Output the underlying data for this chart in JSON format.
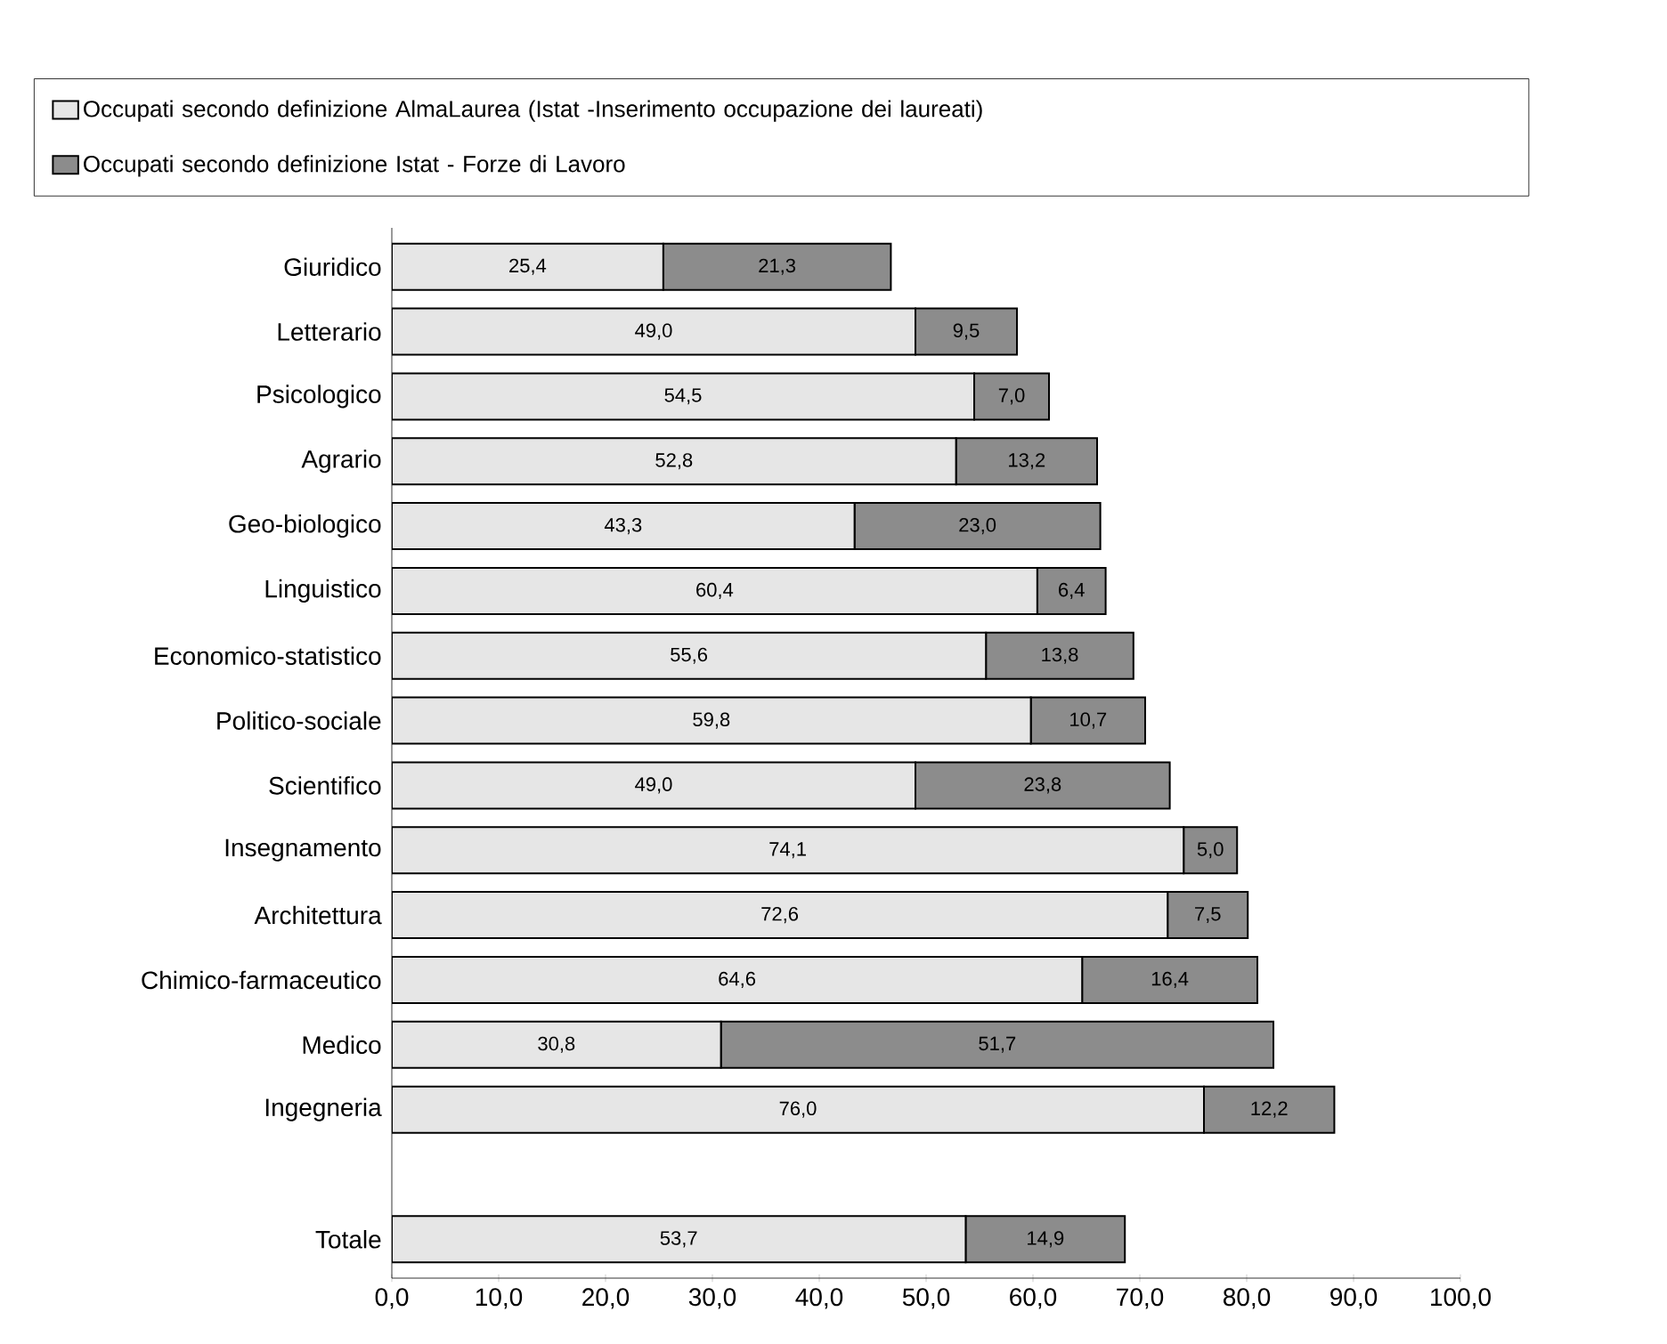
{
  "chart_data": {
    "type": "bar",
    "orientation": "horizontal",
    "stacked": true,
    "legend": "top",
    "grid": false,
    "categories": [
      "Giuridico",
      "Letterario",
      "Psicologico",
      "Agrario",
      "Geo-biologico",
      "Linguistico",
      "Economico-statistico",
      "Politico-sociale",
      "Scientifico",
      "Insegnamento",
      "Architettura",
      "Chimico-farmaceutico",
      "Medico",
      "Ingegneria",
      null,
      "Totale"
    ],
    "series": [
      {
        "name": "Occupati secondo definizione AlmaLaurea (Istat -Inserimento occupazione dei laureati)",
        "color": "#e6e6e6",
        "values": [
          25.4,
          49.0,
          54.5,
          52.8,
          43.3,
          60.4,
          55.6,
          59.8,
          49.0,
          74.1,
          72.6,
          64.6,
          30.8,
          76.0,
          null,
          53.7
        ],
        "value_labels": [
          "25,4",
          "49,0",
          "54,5",
          "52,8",
          "43,3",
          "60,4",
          "55,6",
          "59,8",
          "49,0",
          "74,1",
          "72,6",
          "64,6",
          "30,8",
          "76,0",
          null,
          "53,7"
        ]
      },
      {
        "name": "Occupati secondo definizione Istat - Forze di Lavoro",
        "color": "#8c8c8c",
        "values": [
          21.3,
          9.5,
          7.0,
          13.2,
          23.0,
          6.4,
          13.8,
          10.7,
          23.8,
          5.0,
          7.5,
          16.4,
          51.7,
          12.2,
          null,
          14.9
        ],
        "value_labels": [
          "21,3",
          "9,5",
          "7,0",
          "13,2",
          "23,0",
          "6,4",
          "13,8",
          "10,7",
          "23,8",
          "5,0",
          "7,5",
          "16,4",
          "51,7",
          "12,2",
          null,
          "14,9"
        ]
      }
    ],
    "xlim": [
      0,
      100
    ],
    "xticks": [
      {
        "value": 0,
        "label": "0,0"
      },
      {
        "value": 10,
        "label": "10,0"
      },
      {
        "value": 20,
        "label": "20,0"
      },
      {
        "value": 30,
        "label": "30,0"
      },
      {
        "value": 40,
        "label": "40,0"
      },
      {
        "value": 50,
        "label": "50,0"
      },
      {
        "value": 60,
        "label": "60,0"
      },
      {
        "value": 70,
        "label": "70,0"
      },
      {
        "value": 80,
        "label": "80,0"
      },
      {
        "value": 90,
        "label": "90,0"
      },
      {
        "value": 100,
        "label": "100,0"
      }
    ]
  }
}
